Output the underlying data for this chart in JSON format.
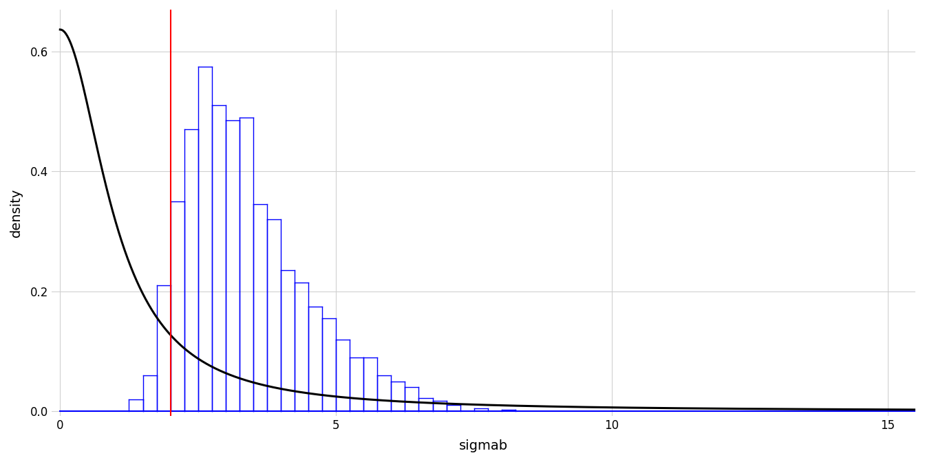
{
  "title": "",
  "xlabel": "sigmab",
  "ylabel": "density",
  "xlim": [
    -0.15,
    15.5
  ],
  "ylim": [
    -0.008,
    0.67
  ],
  "xticks": [
    0,
    5,
    10,
    15
  ],
  "yticks": [
    0.0,
    0.2,
    0.4,
    0.6
  ],
  "red_line_x": 2.0,
  "hist_color": "#0000ff",
  "prior_color": "#000000",
  "vline_color": "#ff0000",
  "background_color": "#ffffff",
  "grid_color": "#d0d0d0",
  "bin_width": 0.25,
  "bin_starts": [
    1.25,
    1.5,
    1.75,
    2.0,
    2.25,
    2.5,
    2.75,
    3.0,
    3.25,
    3.5,
    3.75,
    4.0,
    4.25,
    4.5,
    4.75,
    5.0,
    5.25,
    5.5,
    5.75,
    6.0,
    6.25,
    6.5,
    6.75,
    7.0,
    7.5,
    8.0
  ],
  "hist_heights": [
    0.02,
    0.06,
    0.21,
    0.35,
    0.47,
    0.575,
    0.51,
    0.485,
    0.49,
    0.345,
    0.32,
    0.235,
    0.215,
    0.175,
    0.155,
    0.12,
    0.09,
    0.09,
    0.06,
    0.05,
    0.04,
    0.022,
    0.017,
    0.01,
    0.005,
    0.002
  ],
  "prior_scale_param": 1.0,
  "figsize": [
    13.44,
    6.72
  ],
  "dpi": 100,
  "linewidth_prior": 2.2,
  "linewidth_vline": 1.5,
  "linewidth_hist": 1.0,
  "baseline_linewidth": 1.5,
  "baseline_xmin": 0.0,
  "baseline_xmax": 15.5
}
